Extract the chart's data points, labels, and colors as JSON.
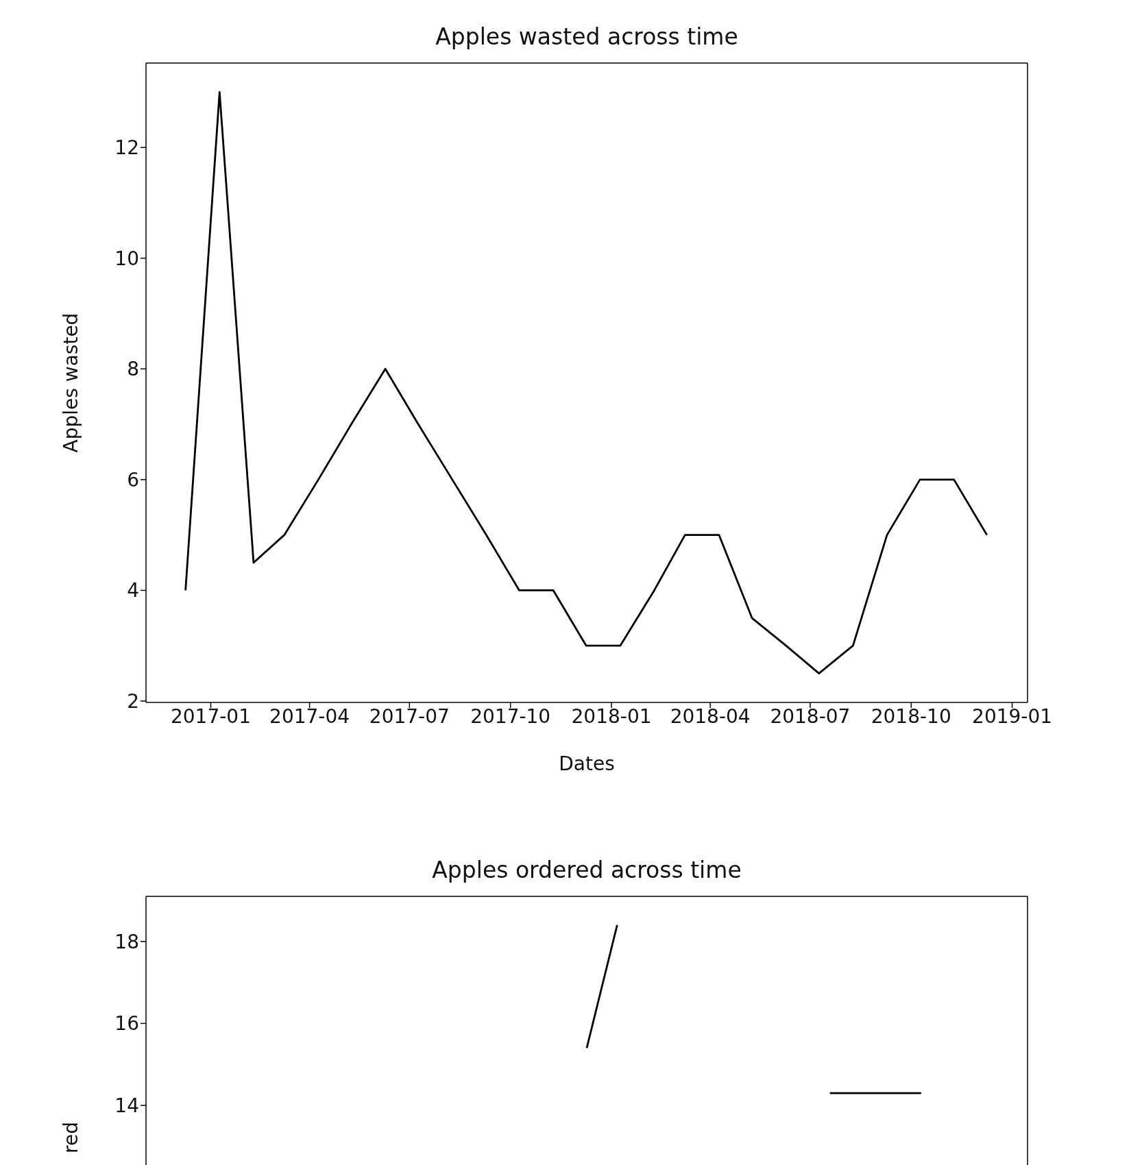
{
  "chart_data": [
    {
      "type": "line",
      "title": "Apples wasted across time",
      "xlabel": "Dates",
      "ylabel": "Apples wasted",
      "color": "#000000",
      "x": [
        "2016-12-09",
        "2017-01-09",
        "2017-02-09",
        "2017-03-09",
        "2017-04-09",
        "2017-05-09",
        "2017-06-09",
        "2017-07-09",
        "2017-08-09",
        "2017-09-09",
        "2017-10-09",
        "2017-11-09",
        "2017-12-09",
        "2018-01-09",
        "2018-02-09",
        "2018-03-09",
        "2018-04-09",
        "2018-05-09",
        "2018-06-09",
        "2018-07-09",
        "2018-08-09",
        "2018-09-09",
        "2018-10-09",
        "2018-11-09",
        "2018-12-09"
      ],
      "values": [
        4,
        13,
        4.5,
        5,
        6,
        7,
        8,
        7,
        6,
        5,
        4,
        4,
        3,
        3,
        4,
        5,
        5,
        3.5,
        3,
        2.5,
        3,
        5,
        6,
        6,
        5
      ],
      "xlim": [
        "2016-11-03",
        "2019-01-15"
      ],
      "xticks": [
        "2017-01",
        "2017-04",
        "2017-07",
        "2017-10",
        "2018-01",
        "2018-04",
        "2018-07",
        "2018-10",
        "2019-01"
      ],
      "ylim": [
        1.975,
        13.525
      ],
      "yticks": [
        2,
        4,
        6,
        8,
        10,
        12
      ]
    },
    {
      "type": "line",
      "title": "Apples ordered across time",
      "ylabel": "red",
      "tick_labels": "y",
      "categories": [
        null,
        null,
        null,
        null,
        null,
        null,
        null,
        null,
        null,
        null,
        null,
        null,
        null,
        null,
        null,
        null,
        null,
        null,
        null,
        null,
        null,
        null,
        null,
        null,
        null,
        null,
        null,
        null,
        null
      ],
      "series": [
        {
          "color": "#000000",
          "values": [
            null,
            null,
            null,
            null,
            null,
            null,
            null,
            null,
            null,
            null,
            null,
            null,
            null,
            null,
            15.4,
            18.4,
            null,
            null,
            null,
            null,
            null,
            null,
            null,
            null,
            null,
            null,
            null,
            null,
            null
          ]
        },
        {
          "color": "#000000",
          "values": [
            null,
            null,
            null,
            null,
            null,
            null,
            null,
            null,
            null,
            null,
            null,
            null,
            null,
            null,
            null,
            null,
            null,
            null,
            null,
            null,
            null,
            null,
            14.3,
            14.3,
            14.3,
            14.3,
            null,
            null,
            null
          ]
        }
      ],
      "ylim": [
        3.5,
        19.1
      ],
      "yticks": [
        14,
        16,
        18
      ]
    }
  ]
}
